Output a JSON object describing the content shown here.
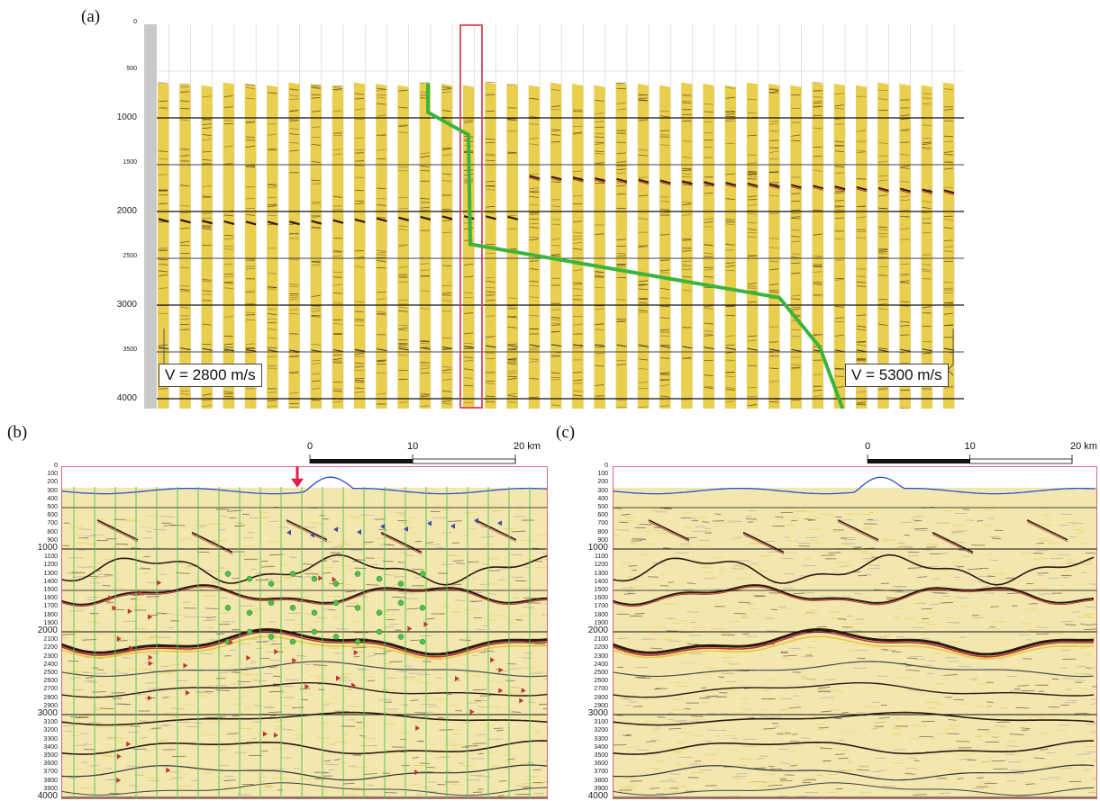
{
  "panels": {
    "a": {
      "label": "(a)"
    },
    "b": {
      "label": "(b)"
    },
    "c": {
      "label": "(c)"
    }
  },
  "panel_a": {
    "y_ticks": [
      "0",
      "500",
      "1000",
      "1500",
      "2000",
      "2500",
      "3000",
      "3500",
      "4000"
    ],
    "velocity_left": "V = 2800 m/s",
    "velocity_right": "V = 5300 m/s"
  },
  "section_y_ticks_major": [
    "1000",
    "2000",
    "3000",
    "4000"
  ],
  "section_y_ticks_minor": [
    "0",
    "100",
    "200",
    "300",
    "400",
    "500",
    "600",
    "700",
    "800",
    "900",
    "1100",
    "1200",
    "1300",
    "1400",
    "1500",
    "1600",
    "1700",
    "1800",
    "1900",
    "2100",
    "2200",
    "2300",
    "2400",
    "2500",
    "2600",
    "2700",
    "2800",
    "2900",
    "3100",
    "3200",
    "3300",
    "3400",
    "3500",
    "3600",
    "3700",
    "3800",
    "3900"
  ],
  "scale_bar": {
    "ticks": [
      "0",
      "10",
      "20 km"
    ]
  },
  "colors": {
    "seismic_bg": "#f3e7b0",
    "seismic_yellow": "#e8c93a",
    "reflector_dark": "#2a1a10",
    "reflector_red": "#c0322a",
    "velocity_curve": "#3cb43c",
    "highlight_box": "#e0405a",
    "topography": "#2a4fd0",
    "grid_green": "#4cc24c",
    "arrow_red": "#e0204a"
  }
}
